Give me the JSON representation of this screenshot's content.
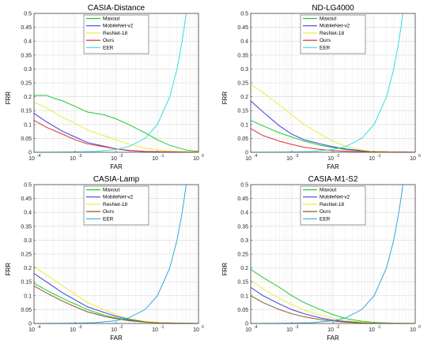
{
  "chart_data": [
    {
      "type": "line",
      "title": "CASIA-Distance",
      "xlabel": "FAR",
      "ylabel": "FRR",
      "xscale": "log",
      "xlim": [
        0.0001,
        1
      ],
      "ylim": [
        0,
        0.5
      ],
      "x_ticks": [
        "10",
        "10",
        "10",
        "10",
        "10"
      ],
      "x_tick_exponents": [
        "-4",
        "-3",
        "-2",
        "-1",
        "0"
      ],
      "y_ticks": [
        "0",
        "0.05",
        "0.1",
        "0.15",
        "0.2",
        "0.25",
        "0.3",
        "0.35",
        "0.4",
        "0.45",
        "0.5"
      ],
      "grid": true,
      "legend": "top-center",
      "series": [
        {
          "name": "Maxout",
          "color": "#22c832",
          "x": [
            0.0001,
            0.0002,
            0.0003,
            0.0005,
            0.001,
            0.002,
            0.005,
            0.01,
            0.02,
            0.05,
            0.1,
            0.2,
            0.5,
            1
          ],
          "y": [
            0.205,
            0.205,
            0.195,
            0.185,
            0.165,
            0.145,
            0.135,
            0.12,
            0.1,
            0.07,
            0.045,
            0.025,
            0.008,
            0.003
          ]
        },
        {
          "name": "MobileNet-v2",
          "color": "#4040d8",
          "x": [
            0.0001,
            0.0002,
            0.0005,
            0.001,
            0.002,
            0.005,
            0.01,
            0.02,
            0.05,
            0.1,
            1
          ],
          "y": [
            0.14,
            0.11,
            0.075,
            0.055,
            0.035,
            0.022,
            0.012,
            0.006,
            0.003,
            0.001,
            0
          ]
        },
        {
          "name": "ResNet-18",
          "color": "#ecec40",
          "x": [
            0.0001,
            0.0002,
            0.0005,
            0.001,
            0.002,
            0.005,
            0.01,
            0.02,
            0.05,
            0.1,
            0.2,
            1
          ],
          "y": [
            0.18,
            0.16,
            0.125,
            0.105,
            0.08,
            0.06,
            0.045,
            0.03,
            0.015,
            0.008,
            0.004,
            0
          ]
        },
        {
          "name": "Ours",
          "color": "#e03030",
          "x": [
            0.0001,
            0.0002,
            0.0005,
            0.001,
            0.002,
            0.005,
            0.01,
            0.02,
            0.05,
            1
          ],
          "y": [
            0.115,
            0.09,
            0.065,
            0.045,
            0.03,
            0.02,
            0.012,
            0.007,
            0.003,
            0
          ]
        },
        {
          "name": "EER",
          "color": "#30e0e0",
          "x": [
            0.0001,
            0.0003,
            0.001,
            0.003,
            0.01,
            0.02,
            0.05,
            0.1,
            0.2,
            0.3,
            0.4,
            0.45,
            0.5
          ],
          "y": [
            0.0001,
            0.0003,
            0.001,
            0.003,
            0.01,
            0.02,
            0.05,
            0.1,
            0.2,
            0.3,
            0.4,
            0.45,
            0.5
          ]
        }
      ]
    },
    {
      "type": "line",
      "title": "ND-LG4000",
      "xlabel": "FAR",
      "ylabel": "FRR",
      "xscale": "log",
      "xlim": [
        0.0001,
        1
      ],
      "ylim": [
        0,
        0.5
      ],
      "x_ticks": [
        "10",
        "10",
        "10",
        "10",
        "10"
      ],
      "x_tick_exponents": [
        "-4",
        "-3",
        "-2",
        "-1",
        "0"
      ],
      "y_ticks": [
        "0",
        "0.05",
        "0.1",
        "0.15",
        "0.2",
        "0.25",
        "0.3",
        "0.35",
        "0.4",
        "0.45",
        "0.5"
      ],
      "grid": true,
      "legend": "top-center",
      "series": [
        {
          "name": "Maxout",
          "color": "#22c832",
          "x": [
            0.0001,
            0.0002,
            0.0005,
            0.001,
            0.002,
            0.005,
            0.01,
            0.02,
            0.05,
            0.1,
            0.3,
            1
          ],
          "y": [
            0.115,
            0.095,
            0.07,
            0.055,
            0.04,
            0.025,
            0.017,
            0.01,
            0.005,
            0.002,
            0.001,
            0
          ]
        },
        {
          "name": "MobileNet-v2",
          "color": "#4040d8",
          "x": [
            0.0001,
            0.0002,
            0.0005,
            0.001,
            0.002,
            0.005,
            0.01,
            0.02,
            0.05,
            0.1,
            0.3,
            1
          ],
          "y": [
            0.185,
            0.145,
            0.095,
            0.065,
            0.045,
            0.03,
            0.02,
            0.012,
            0.006,
            0.003,
            0.001,
            0
          ]
        },
        {
          "name": "ResNet-18",
          "color": "#ecec40",
          "x": [
            0.0001,
            0.0002,
            0.0005,
            0.001,
            0.002,
            0.005,
            0.01,
            0.02,
            0.05,
            0.1,
            0.3,
            1
          ],
          "y": [
            0.245,
            0.215,
            0.17,
            0.135,
            0.1,
            0.065,
            0.04,
            0.022,
            0.008,
            0.003,
            0.001,
            0
          ]
        },
        {
          "name": "Ours",
          "color": "#e03030",
          "x": [
            0.0001,
            0.0002,
            0.0005,
            0.001,
            0.002,
            0.005,
            0.01,
            0.02,
            0.05,
            0.1,
            1
          ],
          "y": [
            0.085,
            0.06,
            0.04,
            0.028,
            0.018,
            0.01,
            0.006,
            0.004,
            0.002,
            0.001,
            0
          ]
        },
        {
          "name": "EER",
          "color": "#30e0e0",
          "x": [
            0.0001,
            0.0003,
            0.001,
            0.003,
            0.01,
            0.02,
            0.05,
            0.1,
            0.2,
            0.3,
            0.4,
            0.45,
            0.5
          ],
          "y": [
            0.0001,
            0.0003,
            0.001,
            0.003,
            0.01,
            0.02,
            0.05,
            0.1,
            0.2,
            0.3,
            0.4,
            0.45,
            0.5
          ]
        }
      ]
    },
    {
      "type": "line",
      "title": "CASIA-Lamp",
      "xlabel": "FAR",
      "ylabel": "FRR",
      "xscale": "log",
      "xlim": [
        0.0001,
        1
      ],
      "ylim": [
        0,
        0.5
      ],
      "x_ticks": [
        "10",
        "10",
        "10",
        "10",
        "10"
      ],
      "x_tick_exponents": [
        "-4",
        "-3",
        "-2",
        "-1",
        "0"
      ],
      "y_ticks": [
        "0",
        "0.05",
        "0.1",
        "0.15",
        "0.2",
        "0.25",
        "0.3",
        "0.35",
        "0.4",
        "0.45",
        "0.5"
      ],
      "grid": true,
      "legend": "top-center",
      "series": [
        {
          "name": "Maxout",
          "color": "#22c832",
          "x": [
            0.0001,
            0.0002,
            0.0005,
            0.001,
            0.002,
            0.005,
            0.01,
            0.02,
            0.05,
            0.1,
            0.3,
            1
          ],
          "y": [
            0.145,
            0.12,
            0.09,
            0.07,
            0.05,
            0.03,
            0.02,
            0.012,
            0.006,
            0.003,
            0.001,
            0
          ]
        },
        {
          "name": "MobileNet-v2",
          "color": "#4040d8",
          "x": [
            0.0001,
            0.0002,
            0.0005,
            0.001,
            0.002,
            0.005,
            0.01,
            0.02,
            0.05,
            0.1,
            0.3,
            1
          ],
          "y": [
            0.18,
            0.15,
            0.11,
            0.085,
            0.06,
            0.04,
            0.026,
            0.015,
            0.007,
            0.003,
            0.001,
            0
          ]
        },
        {
          "name": "ResNet-18",
          "color": "#ecec40",
          "x": [
            0.0001,
            0.0002,
            0.0005,
            0.001,
            0.002,
            0.005,
            0.01,
            0.02,
            0.05,
            0.1,
            0.3,
            1
          ],
          "y": [
            0.205,
            0.175,
            0.135,
            0.105,
            0.075,
            0.05,
            0.032,
            0.018,
            0.008,
            0.004,
            0.001,
            0
          ]
        },
        {
          "name": "Ours",
          "color": "#8a5a2a",
          "x": [
            0.0001,
            0.0002,
            0.0005,
            0.001,
            0.002,
            0.005,
            0.01,
            0.02,
            0.05,
            0.1,
            0.3,
            1
          ],
          "y": [
            0.135,
            0.11,
            0.08,
            0.06,
            0.042,
            0.026,
            0.017,
            0.01,
            0.005,
            0.002,
            0.001,
            0
          ]
        },
        {
          "name": "EER",
          "color": "#30a8e0",
          "x": [
            0.0001,
            0.0003,
            0.001,
            0.003,
            0.01,
            0.02,
            0.05,
            0.1,
            0.2,
            0.3,
            0.4,
            0.45,
            0.5
          ],
          "y": [
            0.0001,
            0.0003,
            0.001,
            0.003,
            0.01,
            0.02,
            0.05,
            0.1,
            0.2,
            0.3,
            0.4,
            0.45,
            0.5
          ]
        }
      ]
    },
    {
      "type": "line",
      "title": "CASIA-M1-S2",
      "xlabel": "FAR",
      "ylabel": "FRR",
      "xscale": "log",
      "xlim": [
        0.0001,
        1
      ],
      "ylim": [
        0,
        0.5
      ],
      "x_ticks": [
        "10",
        "10",
        "10",
        "10",
        "10"
      ],
      "x_tick_exponents": [
        "-4",
        "-3",
        "-2",
        "-1",
        "0"
      ],
      "y_ticks": [
        "0",
        "0.05",
        "0.1",
        "0.15",
        "0.2",
        "0.25",
        "0.3",
        "0.35",
        "0.4",
        "0.45",
        "0.5"
      ],
      "grid": true,
      "legend": "top-center",
      "series": [
        {
          "name": "Maxout",
          "color": "#22c832",
          "x": [
            0.0001,
            0.0002,
            0.0005,
            0.001,
            0.002,
            0.005,
            0.01,
            0.02,
            0.05,
            0.1,
            0.3,
            1
          ],
          "y": [
            0.195,
            0.165,
            0.13,
            0.1,
            0.075,
            0.05,
            0.032,
            0.018,
            0.008,
            0.004,
            0.001,
            0
          ]
        },
        {
          "name": "MobileNet-v2",
          "color": "#4040d8",
          "x": [
            0.0001,
            0.0002,
            0.0005,
            0.001,
            0.002,
            0.005,
            0.01,
            0.02,
            0.05,
            0.1,
            0.3,
            1
          ],
          "y": [
            0.13,
            0.1,
            0.07,
            0.05,
            0.035,
            0.02,
            0.012,
            0.007,
            0.003,
            0.001,
            0,
            0
          ]
        },
        {
          "name": "ResNet-18",
          "color": "#ecec40",
          "x": [
            0.0001,
            0.0002,
            0.0005,
            0.001,
            0.002,
            0.005,
            0.01,
            0.02,
            0.05,
            0.1,
            0.3,
            1
          ],
          "y": [
            0.155,
            0.125,
            0.09,
            0.068,
            0.048,
            0.03,
            0.019,
            0.011,
            0.005,
            0.002,
            0.001,
            0
          ]
        },
        {
          "name": "Ours",
          "color": "#8a5a2a",
          "x": [
            0.0001,
            0.0002,
            0.0005,
            0.001,
            0.002,
            0.005,
            0.01,
            0.02,
            0.05,
            0.1,
            1
          ],
          "y": [
            0.1,
            0.075,
            0.05,
            0.035,
            0.024,
            0.014,
            0.009,
            0.005,
            0.002,
            0.001,
            0
          ]
        },
        {
          "name": "EER",
          "color": "#30a8e0",
          "x": [
            0.0001,
            0.0003,
            0.001,
            0.003,
            0.01,
            0.02,
            0.05,
            0.1,
            0.2,
            0.3,
            0.4,
            0.45,
            0.5
          ],
          "y": [
            0.0001,
            0.0003,
            0.001,
            0.003,
            0.01,
            0.02,
            0.05,
            0.1,
            0.2,
            0.3,
            0.4,
            0.45,
            0.5
          ]
        }
      ]
    }
  ]
}
